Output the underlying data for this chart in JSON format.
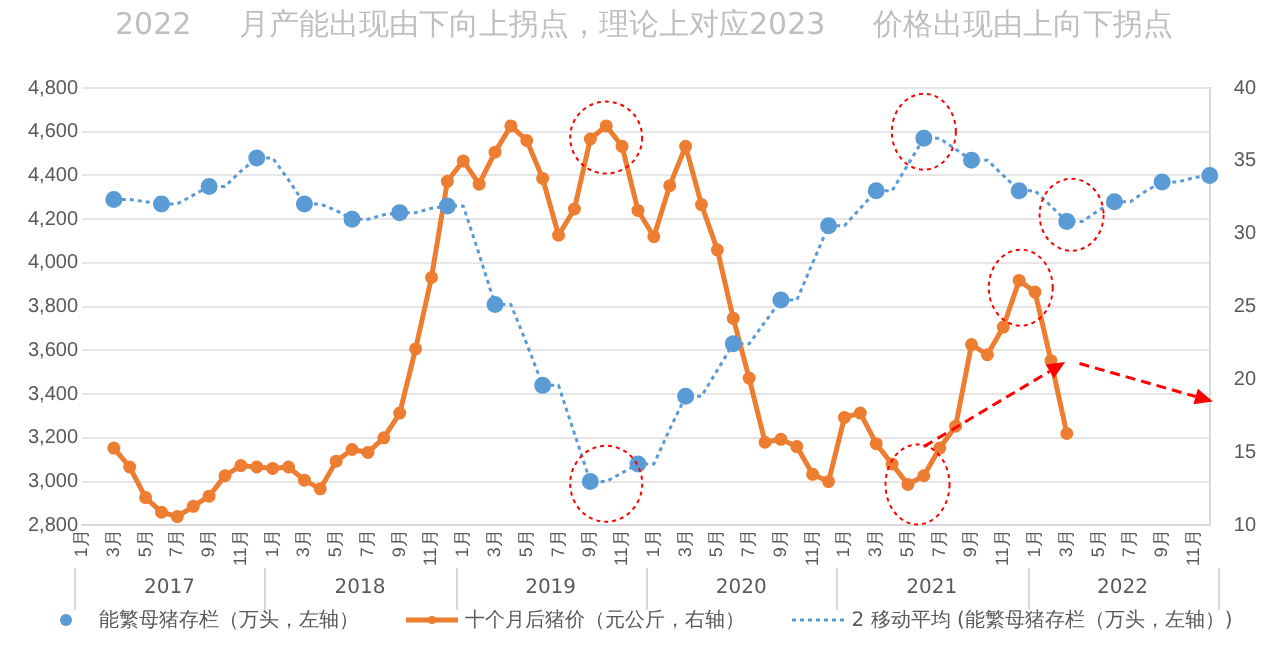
{
  "chart_data": {
    "type": "line",
    "title": "2022     月产能出现由下向上拐点，理论上对应2023     价格出现由上向下拐点",
    "categories": [
      "1月",
      null,
      "3月",
      null,
      "5月",
      null,
      "7月",
      null,
      "9月",
      null,
      "11月",
      null,
      "1月",
      null,
      "3月",
      null,
      "5月",
      null,
      "7月",
      null,
      "9月",
      null,
      "11月",
      null,
      "1月",
      null,
      "3月",
      null,
      "5月",
      null,
      "7月",
      null,
      "9月",
      null,
      "11月",
      null,
      "1月",
      null,
      "3月",
      null,
      "5月",
      null,
      "7月",
      null,
      "9月",
      null,
      "11月",
      null,
      "1月",
      null,
      "3月",
      null,
      "5月",
      null,
      "7月",
      null,
      "9月",
      null,
      "11月",
      null,
      "1月",
      null,
      "3月",
      null,
      "5月",
      null,
      "7月",
      null,
      "9月",
      null,
      "11月",
      null
    ],
    "annotations": [
      "2017",
      "2018",
      "2019",
      "2020",
      "2021",
      "2022"
    ],
    "series": [
      {
        "name": "能繁母猪存栏（万头，左轴）",
        "type": "scatter",
        "color": "#5b9bd5",
        "marker": "circle",
        "values": [
          null,
          null,
          4290,
          null,
          null,
          4270,
          null,
          null,
          4350,
          null,
          null,
          4480,
          null,
          null,
          4270,
          null,
          null,
          4200,
          null,
          null,
          4230,
          null,
          null,
          4260,
          null,
          null,
          3810,
          null,
          null,
          3440,
          null,
          null,
          3000,
          null,
          null,
          3080,
          null,
          null,
          3390,
          null,
          null,
          3630,
          null,
          null,
          3830,
          null,
          null,
          4170,
          null,
          null,
          4330,
          null,
          null,
          4570,
          null,
          null,
          4470,
          null,
          null,
          4330,
          null,
          null,
          4190,
          null,
          null,
          4280,
          null,
          null,
          4370,
          null,
          null,
          4400
        ]
      },
      {
        "name": "十个月后猪价（元公斤，右轴）",
        "color": "#ed7d31",
        "marker": "circle",
        "axis": "y2",
        "values": [
          null,
          null,
          15.3,
          14.0,
          11.9,
          10.9,
          10.6,
          11.3,
          12.0,
          13.4,
          14.1,
          14.0,
          13.9,
          14.0,
          13.1,
          12.5,
          14.4,
          15.2,
          15.0,
          16.0,
          17.7,
          22.1,
          27.0,
          33.6,
          35.0,
          33.4,
          35.6,
          37.4,
          36.4,
          33.8,
          29.9,
          31.7,
          36.5,
          37.4,
          36.0,
          31.6,
          29.8,
          33.3,
          36.0,
          32.0,
          28.9,
          24.2,
          20.1,
          15.7,
          15.9,
          15.4,
          13.5,
          13.0,
          17.4,
          17.7,
          15.6,
          14.2,
          12.8,
          13.4,
          15.3,
          16.8,
          22.4,
          21.7,
          23.6,
          26.8,
          26.0,
          21.3,
          16.3,
          null,
          null,
          null,
          null,
          null,
          null,
          null,
          null,
          null
        ]
      },
      {
        "name": "2 移动平均 (能繁母猪存栏（万头，左轴）)",
        "color": "#5b9bd5",
        "marker": "none",
        "line_style": "dotted",
        "values": [
          null,
          null,
          4290,
          4290,
          4280,
          4270,
          4270,
          4310,
          4350,
          4350,
          4420,
          4480,
          4480,
          4380,
          4270,
          4270,
          4240,
          4200,
          4200,
          4220,
          4230,
          4230,
          4250,
          4260,
          4260,
          4040,
          3810,
          3810,
          3630,
          3440,
          3440,
          3220,
          3000,
          3000,
          3040,
          3080,
          3080,
          3240,
          3390,
          3390,
          3510,
          3630,
          3630,
          3730,
          3830,
          3830,
          4000,
          4170,
          4170,
          4250,
          4330,
          4330,
          4450,
          4570,
          4570,
          4520,
          4470,
          4470,
          4400,
          4330,
          4330,
          4260,
          4190,
          4190,
          4240,
          4280,
          4280,
          4330,
          4370,
          4370,
          4390,
          4400
        ]
      }
    ],
    "ylim": [
      2800,
      4800
    ],
    "yticks": [
      {
        "value": 2800,
        "label": "2,800"
      },
      {
        "value": 3000,
        "label": "3,000"
      },
      {
        "value": 3200,
        "label": "3,200"
      },
      {
        "value": 3400,
        "label": "3,400"
      },
      {
        "value": 3600,
        "label": "3,600"
      },
      {
        "value": 3800,
        "label": "3,800"
      },
      {
        "value": 4000,
        "label": "4,000"
      },
      {
        "value": 4200,
        "label": "4,200"
      },
      {
        "value": 4400,
        "label": "4,400"
      },
      {
        "value": 4600,
        "label": "4,600"
      },
      {
        "value": 4800,
        "label": "4,800"
      }
    ],
    "y2lim": [
      10,
      40
    ],
    "y2ticks": [
      10,
      15,
      20,
      25,
      30,
      35,
      40
    ],
    "grid": "y",
    "legend": "bottom"
  }
}
